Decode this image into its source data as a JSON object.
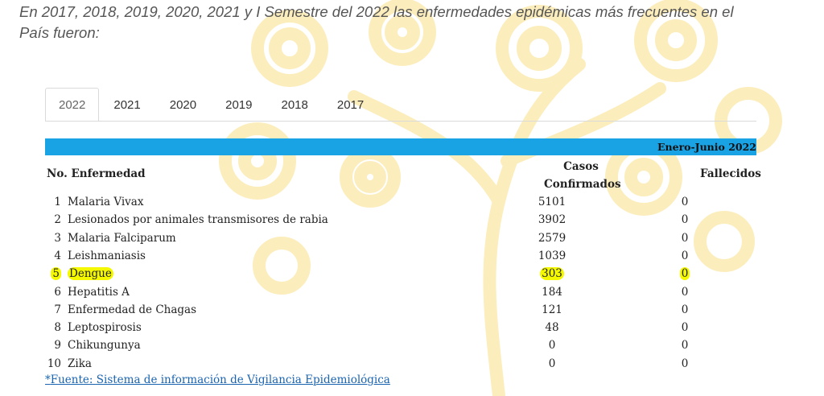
{
  "intro": {
    "line1": "En 2017, 2018, 2019, 2020, 2021 y  I Semestre del 2022 las enfermedades epidémicas más frecuentes en el",
    "line2": "País fueron:"
  },
  "tabs": [
    {
      "label": "2022",
      "active": true
    },
    {
      "label": "2021",
      "active": false
    },
    {
      "label": "2020",
      "active": false
    },
    {
      "label": "2019",
      "active": false
    },
    {
      "label": "2018",
      "active": false
    },
    {
      "label": "2017",
      "active": false
    }
  ],
  "table": {
    "period": "Enero-Junio 2022",
    "headers": {
      "no_disease": "No. Enfermedad",
      "cases_line1": "Casos",
      "cases_line2": "Confirmados",
      "deaths": "Fallecidos"
    },
    "rows": [
      {
        "no": "1",
        "name": "Malaria Vivax",
        "cases": "5101",
        "deaths": "0"
      },
      {
        "no": "2",
        "name": "Lesionados por animales transmisores de rabia",
        "cases": "3902",
        "deaths": "0"
      },
      {
        "no": "3",
        "name": "Malaria Falciparum",
        "cases": "2579",
        "deaths": "0"
      },
      {
        "no": "4",
        "name": "Leishmaniasis",
        "cases": "1039",
        "deaths": "0"
      },
      {
        "no": "5",
        "name": "Dengue",
        "cases": "303",
        "deaths": "0",
        "highlight": true
      },
      {
        "no": "6",
        "name": "Hepatitis A",
        "cases": "184",
        "deaths": "0"
      },
      {
        "no": "7",
        "name": "Enfermedad de Chagas",
        "cases": "121",
        "deaths": "0"
      },
      {
        "no": "8",
        "name": "Leptospirosis",
        "cases": "48",
        "deaths": "0"
      },
      {
        "no": "9",
        "name": "Chikungunya",
        "cases": "0",
        "deaths": "0"
      },
      {
        "no": "10",
        "name": "Zika",
        "cases": "0",
        "deaths": "0"
      }
    ]
  },
  "source": {
    "prefix": "*",
    "link": "Fuente: Sistema de información de Vigilancia Epidemiológica"
  },
  "colors": {
    "bar": "#1aa3e4",
    "highlight": "#f4f800",
    "link": "#1a64b0",
    "tree": "#fbe7a6"
  },
  "icons": {
    "background": "decorative-tree-icon"
  }
}
